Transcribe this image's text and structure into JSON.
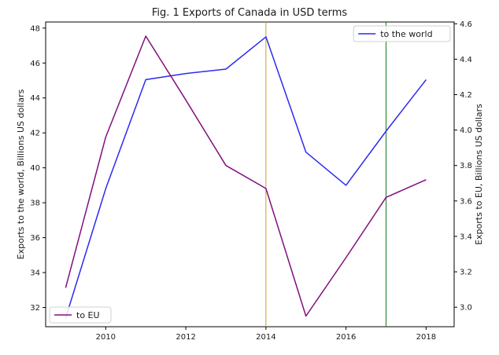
{
  "chart_data": {
    "type": "line",
    "title": "Fig. 1 Exports of Canada in USD terms",
    "x": [
      2009,
      2010,
      2011,
      2012,
      2013,
      2014,
      2015,
      2016,
      2017,
      2018
    ],
    "xlim": [
      2008.5,
      2018.7
    ],
    "xticks": [
      "2010",
      "2012",
      "2014",
      "2016",
      "2018"
    ],
    "y_left": {
      "label": "Exports to the world, Billions US dollars",
      "lim": [
        30.9,
        48.35
      ],
      "ticks": [
        "32",
        "34",
        "36",
        "38",
        "40",
        "42",
        "44",
        "46",
        "48"
      ]
    },
    "y_right": {
      "label": "Exports to EU, Billions US dollars",
      "lim": [
        2.89,
        4.61
      ],
      "ticks": [
        "3.0",
        "3.2",
        "3.4",
        "3.6",
        "3.8",
        "4.0",
        "4.2",
        "4.4",
        "4.6"
      ]
    },
    "series": [
      {
        "name": "to the world",
        "axis": "left",
        "color": "#2b2bf0",
        "values": [
          31.4,
          38.8,
          45.05,
          45.4,
          45.65,
          47.5,
          40.9,
          39.0,
          42.1,
          45.05
        ]
      },
      {
        "name": "to EU",
        "axis": "right",
        "color": "#800f80",
        "values": [
          3.11,
          3.96,
          4.53,
          4.17,
          3.8,
          3.67,
          2.95,
          3.28,
          3.62,
          3.72
        ]
      }
    ],
    "vlines": [
      {
        "x": 2014,
        "color": "#c9a227"
      },
      {
        "x": 2017,
        "color": "#1a7a1a"
      }
    ],
    "legends": [
      {
        "series": "to the world",
        "placement": "top-right"
      },
      {
        "series": "to EU",
        "placement": "bottom-left"
      }
    ],
    "grid": false
  }
}
